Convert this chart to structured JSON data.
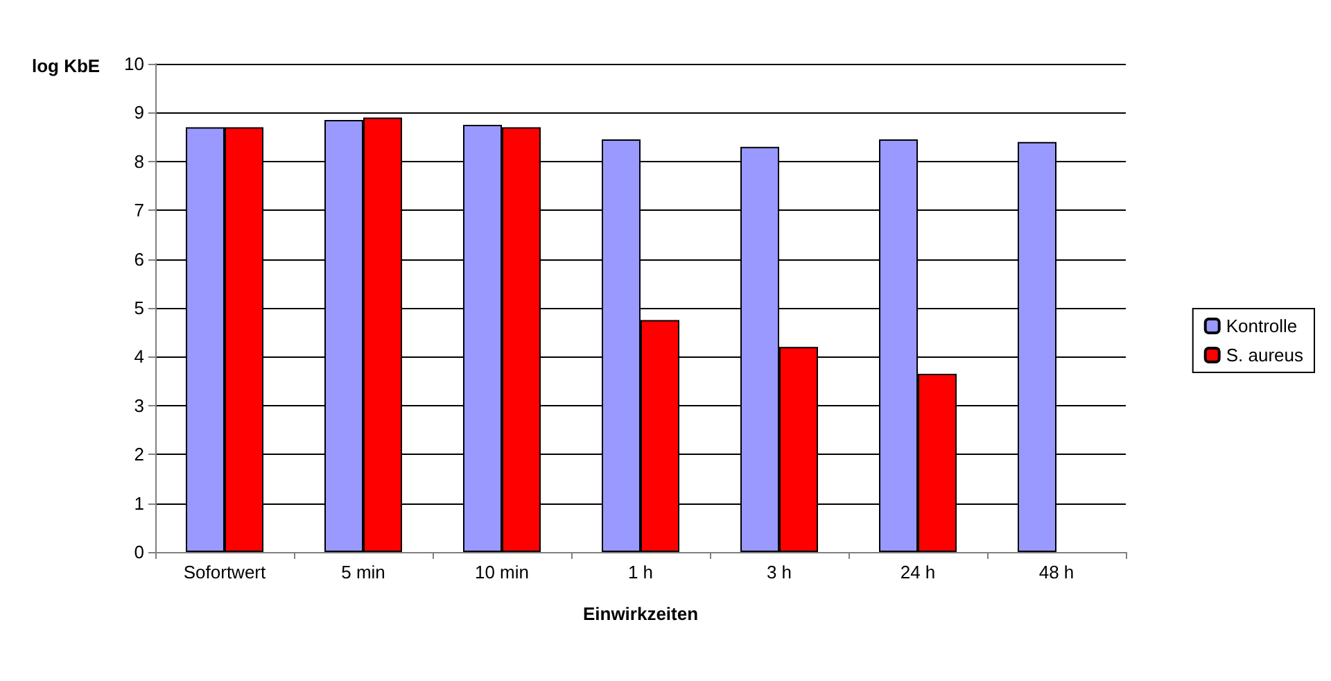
{
  "chart_data": {
    "type": "bar",
    "xlabel": "Einwirkzeiten",
    "ylabel": "log KbE",
    "categories": [
      "Sofortwert",
      "5 min",
      "10 min",
      "1 h",
      "3 h",
      "24 h",
      "48 h"
    ],
    "series": [
      {
        "name": "Kontrolle",
        "color": "#9999ff",
        "values": [
          8.7,
          8.85,
          8.75,
          8.45,
          8.3,
          8.45,
          8.4
        ]
      },
      {
        "name": "S. aureus",
        "color": "#ff0000",
        "values": [
          8.7,
          8.9,
          8.7,
          4.75,
          4.2,
          3.65,
          null
        ]
      }
    ],
    "ylim": [
      0,
      10
    ],
    "yticks": [
      0,
      1,
      2,
      3,
      4,
      5,
      6,
      7,
      8,
      9,
      10
    ],
    "grid": "y",
    "legend": "right"
  }
}
